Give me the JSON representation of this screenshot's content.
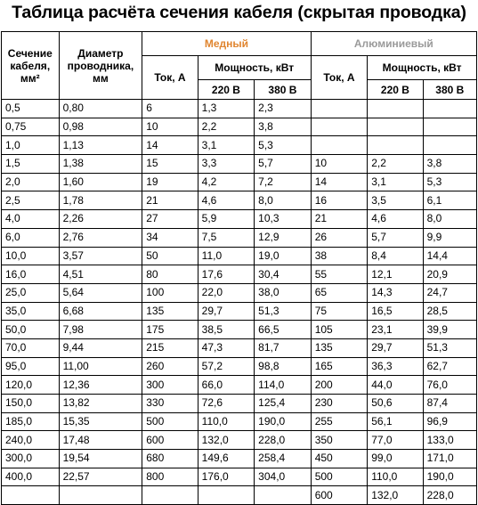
{
  "title": "Таблица расчёта сечения кабеля (скрытая проводка)",
  "headers": {
    "section": "Сечение кабеля, мм²",
    "diameter": "Диаметр проводника, мм",
    "copper": "Медный",
    "aluminum": "Алюминиевый",
    "current": "Ток, А",
    "power": "Мощность, кВт",
    "v220": "220 В",
    "v380": "380 В"
  },
  "colors": {
    "copper_header": "#e0852f",
    "aluminum_header": "#9a9a9a"
  },
  "rows": [
    {
      "section": "0,5",
      "diameter": "0,80",
      "cu_current": "6",
      "cu_220": "1,3",
      "cu_380": "2,3",
      "al_current": "",
      "al_220": "",
      "al_380": ""
    },
    {
      "section": "0,75",
      "diameter": "0,98",
      "cu_current": "10",
      "cu_220": "2,2",
      "cu_380": "3,8",
      "al_current": "",
      "al_220": "",
      "al_380": ""
    },
    {
      "section": "1,0",
      "diameter": "1,13",
      "cu_current": "14",
      "cu_220": "3,1",
      "cu_380": "5,3",
      "al_current": "",
      "al_220": "",
      "al_380": ""
    },
    {
      "section": "1,5",
      "diameter": "1,38",
      "cu_current": "15",
      "cu_220": "3,3",
      "cu_380": "5,7",
      "al_current": "10",
      "al_220": "2,2",
      "al_380": "3,8"
    },
    {
      "section": "2,0",
      "diameter": "1,60",
      "cu_current": "19",
      "cu_220": "4,2",
      "cu_380": "7,2",
      "al_current": "14",
      "al_220": "3,1",
      "al_380": "5,3"
    },
    {
      "section": "2,5",
      "diameter": "1,78",
      "cu_current": "21",
      "cu_220": "4,6",
      "cu_380": "8,0",
      "al_current": "16",
      "al_220": "3,5",
      "al_380": "6,1"
    },
    {
      "section": "4,0",
      "diameter": "2,26",
      "cu_current": "27",
      "cu_220": "5,9",
      "cu_380": "10,3",
      "al_current": "21",
      "al_220": "4,6",
      "al_380": "8,0"
    },
    {
      "section": "6,0",
      "diameter": "2,76",
      "cu_current": "34",
      "cu_220": "7,5",
      "cu_380": "12,9",
      "al_current": "26",
      "al_220": "5,7",
      "al_380": "9,9"
    },
    {
      "section": "10,0",
      "diameter": "3,57",
      "cu_current": "50",
      "cu_220": "11,0",
      "cu_380": "19,0",
      "al_current": "38",
      "al_220": "8,4",
      "al_380": "14,4"
    },
    {
      "section": "16,0",
      "diameter": "4,51",
      "cu_current": "80",
      "cu_220": "17,6",
      "cu_380": "30,4",
      "al_current": "55",
      "al_220": "12,1",
      "al_380": "20,9"
    },
    {
      "section": "25,0",
      "diameter": "5,64",
      "cu_current": "100",
      "cu_220": "22,0",
      "cu_380": "38,0",
      "al_current": "65",
      "al_220": "14,3",
      "al_380": "24,7"
    },
    {
      "section": "35,0",
      "diameter": "6,68",
      "cu_current": "135",
      "cu_220": "29,7",
      "cu_380": "51,3",
      "al_current": "75",
      "al_220": "16,5",
      "al_380": "28,5"
    },
    {
      "section": "50,0",
      "diameter": "7,98",
      "cu_current": "175",
      "cu_220": "38,5",
      "cu_380": "66,5",
      "al_current": "105",
      "al_220": "23,1",
      "al_380": "39,9"
    },
    {
      "section": "70,0",
      "diameter": "9,44",
      "cu_current": "215",
      "cu_220": "47,3",
      "cu_380": "81,7",
      "al_current": "135",
      "al_220": "29,7",
      "al_380": "51,3"
    },
    {
      "section": "95,0",
      "diameter": "11,00",
      "cu_current": "260",
      "cu_220": "57,2",
      "cu_380": "98,8",
      "al_current": "165",
      "al_220": "36,3",
      "al_380": "62,7"
    },
    {
      "section": "120,0",
      "diameter": "12,36",
      "cu_current": "300",
      "cu_220": "66,0",
      "cu_380": "114,0",
      "al_current": "200",
      "al_220": "44,0",
      "al_380": "76,0"
    },
    {
      "section": "150,0",
      "diameter": "13,82",
      "cu_current": "330",
      "cu_220": "72,6",
      "cu_380": "125,4",
      "al_current": "230",
      "al_220": "50,6",
      "al_380": "87,4"
    },
    {
      "section": "185,0",
      "diameter": "15,35",
      "cu_current": "500",
      "cu_220": "110,0",
      "cu_380": "190,0",
      "al_current": "255",
      "al_220": "56,1",
      "al_380": "96,9"
    },
    {
      "section": "240,0",
      "diameter": "17,48",
      "cu_current": "600",
      "cu_220": "132,0",
      "cu_380": "228,0",
      "al_current": "350",
      "al_220": "77,0",
      "al_380": "133,0"
    },
    {
      "section": "300,0",
      "diameter": "19,54",
      "cu_current": "680",
      "cu_220": "149,6",
      "cu_380": "258,4",
      "al_current": "450",
      "al_220": "99,0",
      "al_380": "171,0"
    },
    {
      "section": "400,0",
      "diameter": "22,57",
      "cu_current": "800",
      "cu_220": "176,0",
      "cu_380": "304,0",
      "al_current": "500",
      "al_220": "110,0",
      "al_380": "190,0"
    },
    {
      "section": "",
      "diameter": "",
      "cu_current": "",
      "cu_220": "",
      "cu_380": "",
      "al_current": "600",
      "al_220": "132,0",
      "al_380": "228,0"
    }
  ]
}
